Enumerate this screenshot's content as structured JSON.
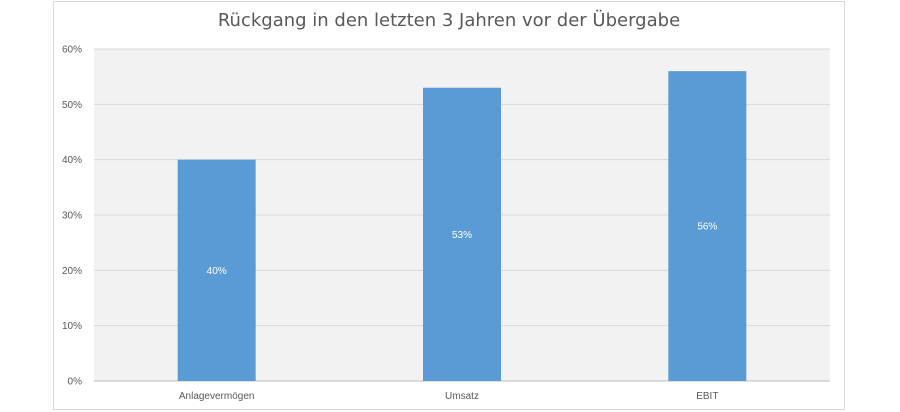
{
  "chart_data": {
    "type": "bar",
    "title": "Rückgang in den letzten 3 Jahren vor der Übergabe",
    "categories": [
      "Anlagevermögen",
      "Umsatz",
      "EBIT"
    ],
    "values": [
      40,
      53,
      56
    ],
    "data_labels": [
      "40%",
      "53%",
      "56%"
    ],
    "ylim": [
      0,
      60
    ],
    "yticks": [
      "0%",
      "10%",
      "20%",
      "30%",
      "40%",
      "50%",
      "60%"
    ],
    "grid": true,
    "bar_color": "#5b9bd5",
    "plot_background": "#f2f2f2"
  }
}
